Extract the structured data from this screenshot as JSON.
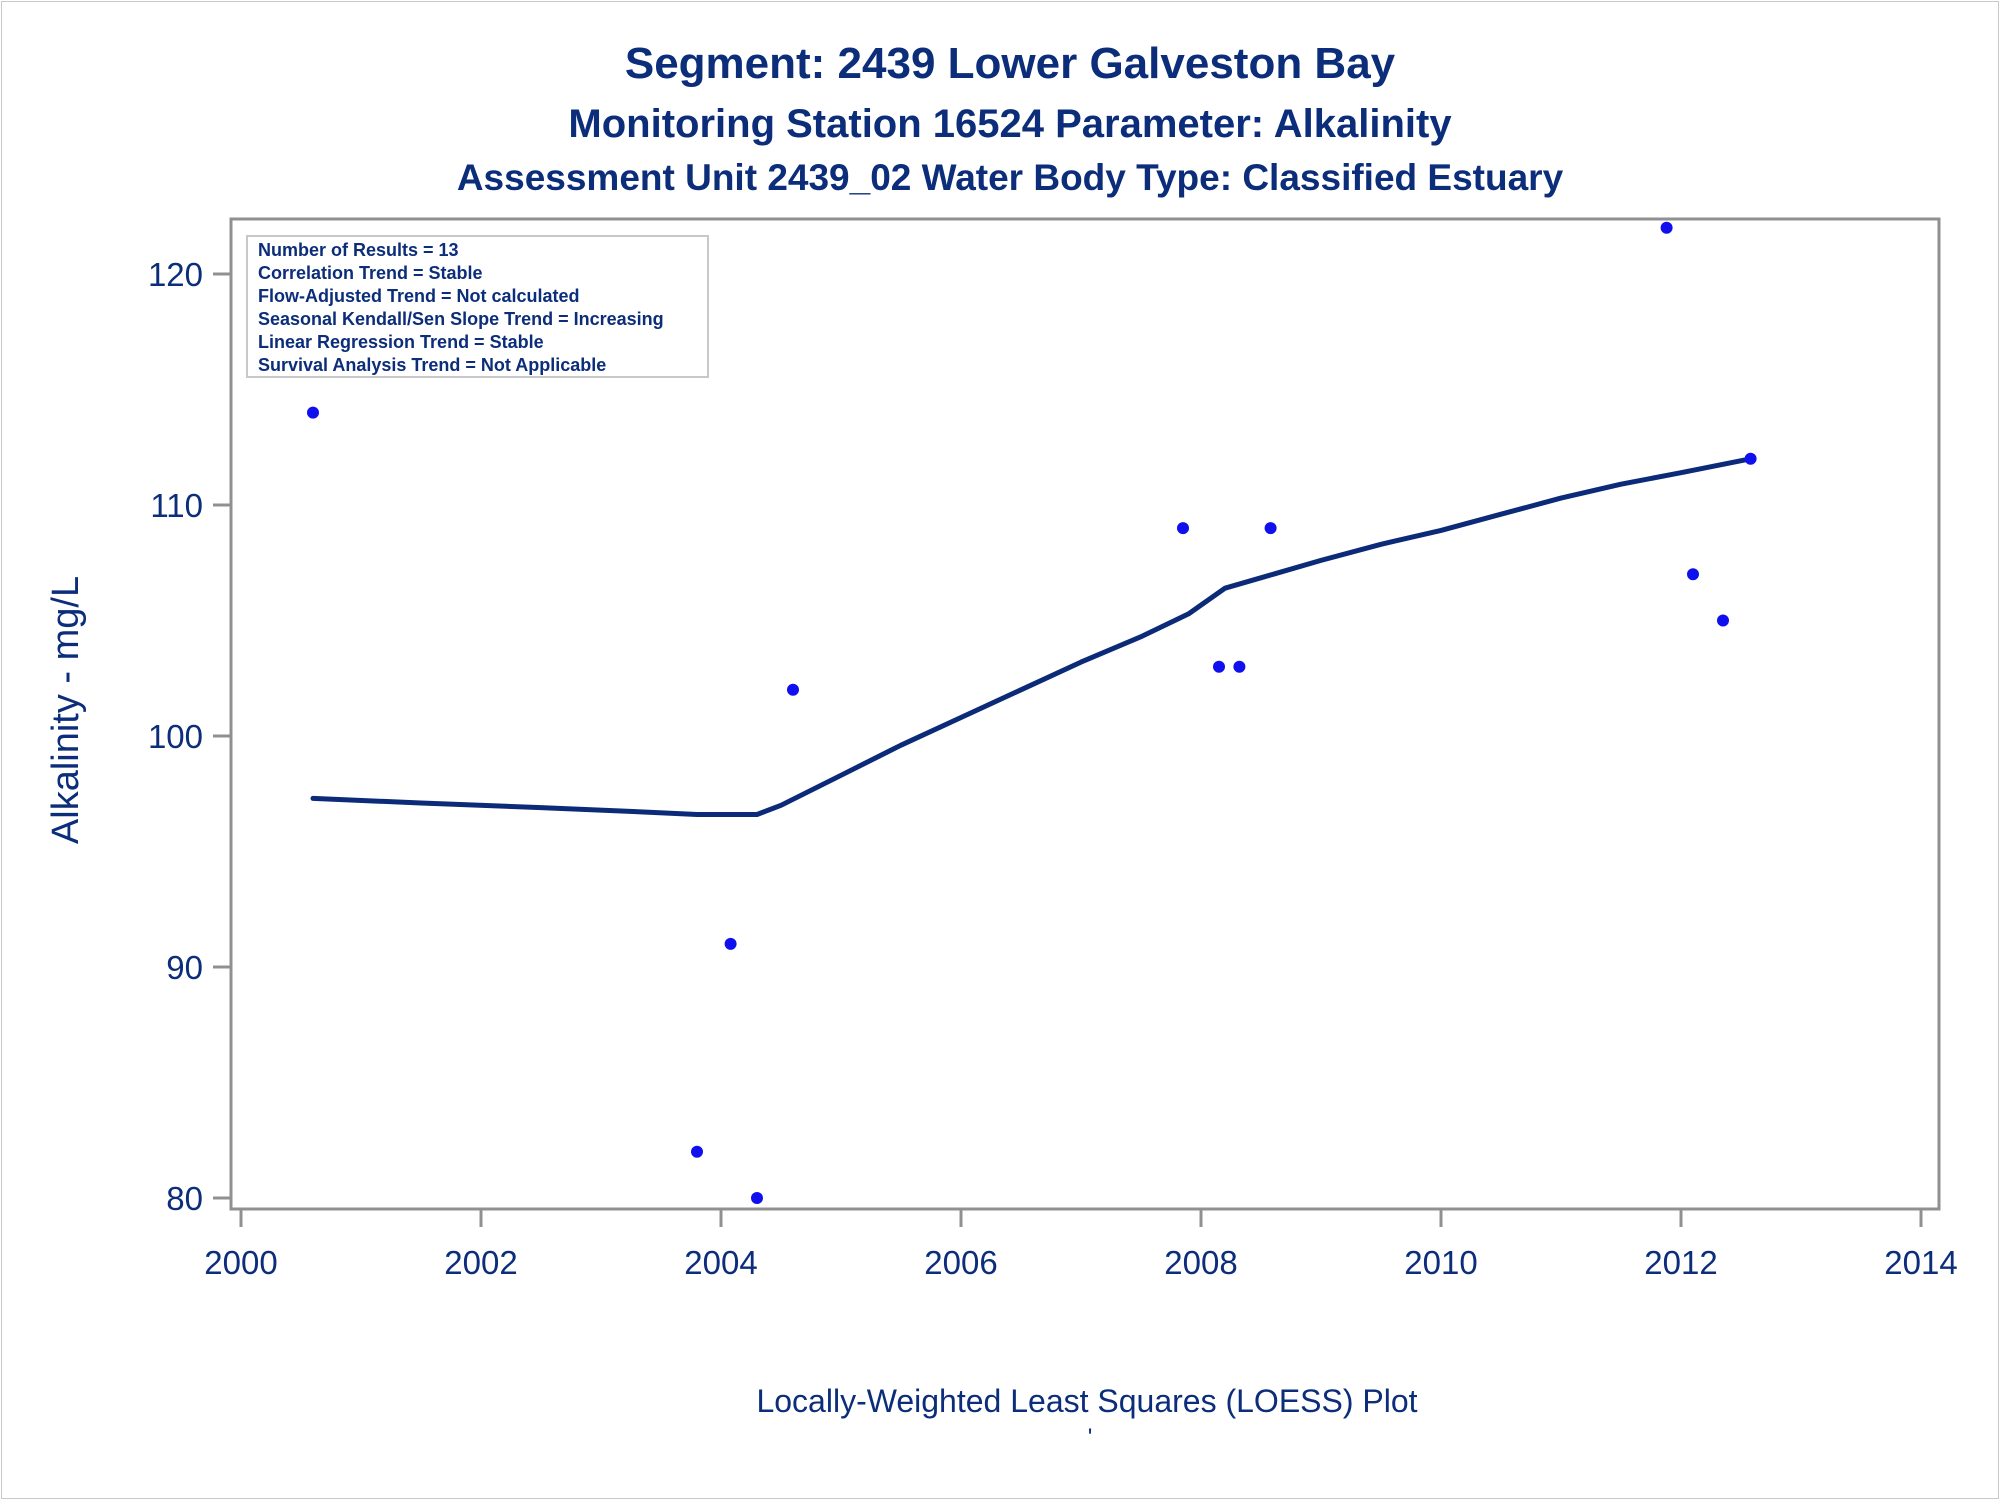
{
  "chart_data": {
    "type": "scatter",
    "title": "Segment: 2439  Lower Galveston Bay",
    "subtitle": "Monitoring Station 16524 Parameter: Alkalinity",
    "subtitle2": "Assessment Unit 2439_02   Water Body Type: Classified Estuary",
    "xlabel": "Locally-Weighted Least Squares (LOESS) Plot",
    "footnote": "'",
    "ylabel": "Alkalinity - mg/L",
    "xlim": [
      2000,
      2014
    ],
    "ylim": [
      80,
      122
    ],
    "x_ticks": [
      "2000",
      "2002",
      "2004",
      "2006",
      "2008",
      "2010",
      "2012",
      "2014"
    ],
    "y_ticks": [
      "80",
      "90",
      "100",
      "110",
      "120"
    ],
    "grid": false,
    "stats_box": [
      "Number of Results = 13",
      "Correlation Trend = Stable",
      "Flow-Adjusted Trend = Not calculated",
      "Seasonal Kendall/Sen Slope Trend = Increasing",
      "Linear Regression Trend = Stable",
      "Survival Analysis Trend = Not Applicable"
    ],
    "points": [
      {
        "x": 2000.6,
        "y": 114
      },
      {
        "x": 2003.8,
        "y": 82
      },
      {
        "x": 2004.08,
        "y": 91
      },
      {
        "x": 2004.3,
        "y": 80
      },
      {
        "x": 2004.6,
        "y": 102
      },
      {
        "x": 2007.85,
        "y": 109
      },
      {
        "x": 2008.15,
        "y": 103
      },
      {
        "x": 2008.32,
        "y": 103
      },
      {
        "x": 2008.58,
        "y": 109
      },
      {
        "x": 2011.88,
        "y": 122
      },
      {
        "x": 2012.1,
        "y": 107
      },
      {
        "x": 2012.35,
        "y": 105
      },
      {
        "x": 2012.58,
        "y": 112
      }
    ],
    "loess_line": [
      {
        "x": 2000.6,
        "y": 97.3
      },
      {
        "x": 2001.5,
        "y": 97.1
      },
      {
        "x": 2002.5,
        "y": 96.9
      },
      {
        "x": 2003.4,
        "y": 96.7
      },
      {
        "x": 2003.8,
        "y": 96.6
      },
      {
        "x": 2004.3,
        "y": 96.6
      },
      {
        "x": 2004.5,
        "y": 97.0
      },
      {
        "x": 2005.0,
        "y": 98.3
      },
      {
        "x": 2005.5,
        "y": 99.6
      },
      {
        "x": 2006.0,
        "y": 100.8
      },
      {
        "x": 2006.5,
        "y": 102.0
      },
      {
        "x": 2007.0,
        "y": 103.2
      },
      {
        "x": 2007.5,
        "y": 104.3
      },
      {
        "x": 2007.9,
        "y": 105.3
      },
      {
        "x": 2008.2,
        "y": 106.4
      },
      {
        "x": 2008.6,
        "y": 107.0
      },
      {
        "x": 2009.0,
        "y": 107.6
      },
      {
        "x": 2009.5,
        "y": 108.3
      },
      {
        "x": 2010.0,
        "y": 108.9
      },
      {
        "x": 2010.5,
        "y": 109.6
      },
      {
        "x": 2011.0,
        "y": 110.3
      },
      {
        "x": 2011.5,
        "y": 110.9
      },
      {
        "x": 2012.0,
        "y": 111.4
      },
      {
        "x": 2012.58,
        "y": 112.0
      }
    ],
    "colors": {
      "text": "#0b2d7a",
      "points": "#1010ee",
      "line": "#0b2a78",
      "axis": "#909090"
    }
  }
}
